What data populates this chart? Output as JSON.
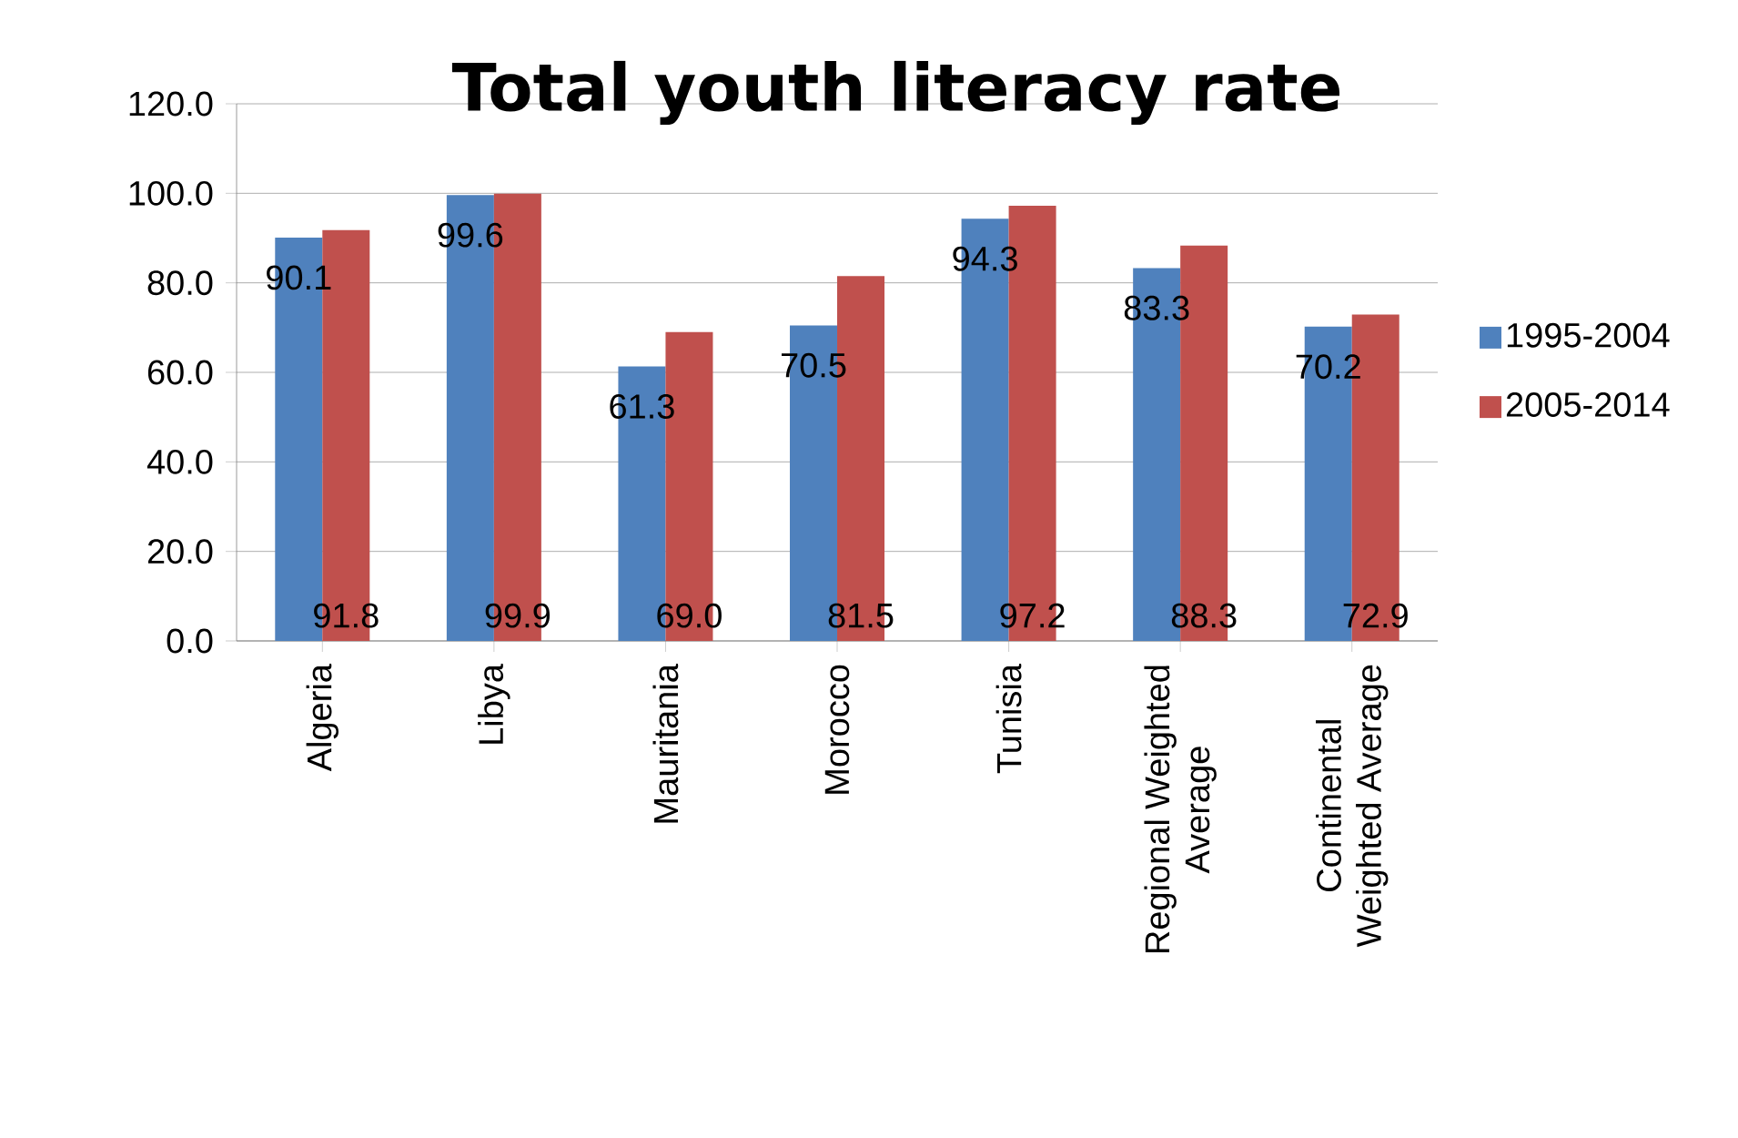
{
  "chart_data": {
    "type": "bar",
    "title": "Total youth literacy rate",
    "categories": [
      "Algeria",
      "Libya",
      "Mauritania",
      "Morocco",
      "Tunisia",
      "Regional Weighted Average",
      "Continental Weighted Average"
    ],
    "series": [
      {
        "name": "1995-2004",
        "color": "#4f81bd",
        "values": [
          90.1,
          99.6,
          61.3,
          70.5,
          94.3,
          83.3,
          70.2
        ],
        "value_labels": [
          "90.1",
          "99.6",
          "61.3",
          "70.5",
          "94.3",
          "83.3",
          "70.2"
        ]
      },
      {
        "name": "2005-2014",
        "color": "#c0504d",
        "values": [
          91.8,
          99.9,
          69.0,
          81.5,
          97.2,
          88.3,
          72.9
        ],
        "value_labels": [
          "91.8",
          "99.9",
          "69.0",
          "81.5",
          "97.2",
          "88.3",
          "72.9"
        ]
      }
    ],
    "ylim": [
      0,
      120
    ],
    "yticks": [
      {
        "value": 0,
        "label": "0.0"
      },
      {
        "value": 20,
        "label": "20.0"
      },
      {
        "value": 40,
        "label": "40.0"
      },
      {
        "value": 60,
        "label": "60.0"
      },
      {
        "value": 80,
        "label": "80.0"
      },
      {
        "value": 100,
        "label": "100.0"
      },
      {
        "value": 120,
        "label": "120.0"
      }
    ],
    "grid": "y",
    "legend": "right"
  }
}
